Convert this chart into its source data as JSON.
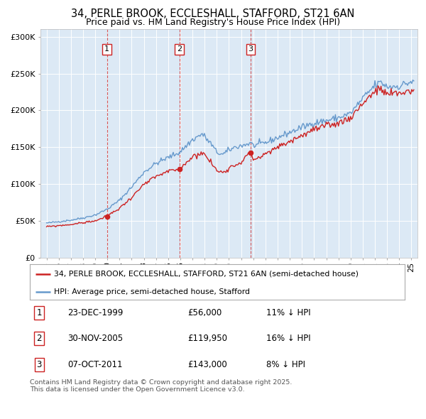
{
  "title": "34, PERLE BROOK, ECCLESHALL, STAFFORD, ST21 6AN",
  "subtitle": "Price paid vs. HM Land Registry's House Price Index (HPI)",
  "hpi_label": "HPI: Average price, semi-detached house, Stafford",
  "price_label": "34, PERLE BROOK, ECCLESHALL, STAFFORD, ST21 6AN (semi-detached house)",
  "sales": [
    {
      "num": 1,
      "date": "23-DEC-1999",
      "price": 56000,
      "year": 1999.97,
      "pct": "11%",
      "dir": "↓"
    },
    {
      "num": 2,
      "date": "30-NOV-2005",
      "price": 119950,
      "year": 2005.92,
      "pct": "16%",
      "dir": "↓"
    },
    {
      "num": 3,
      "date": "07-OCT-2011",
      "price": 143000,
      "year": 2011.77,
      "pct": "8%",
      "dir": "↓"
    }
  ],
  "footnote1": "Contains HM Land Registry data © Crown copyright and database right 2025.",
  "footnote2": "This data is licensed under the Open Government Licence v3.0.",
  "hpi_color": "#6699cc",
  "price_color": "#cc2222",
  "marker_color": "#cc2222",
  "plot_bg": "#dce9f5",
  "ylim": [
    0,
    310000
  ],
  "xlim_start": 1994.5,
  "xlim_end": 2025.5,
  "hpi_anchors": {
    "1995.0": 47000,
    "1996.0": 49000,
    "1997.0": 51000,
    "1998.0": 54000,
    "1999.0": 58000,
    "2000.0": 66000,
    "2001.0": 78000,
    "2002.0": 96000,
    "2003.0": 116000,
    "2004.0": 128000,
    "2005.0": 136000,
    "2005.92": 142857,
    "2006.0": 144000,
    "2007.0": 160000,
    "2007.8": 168000,
    "2008.5": 155000,
    "2009.0": 143000,
    "2009.5": 140000,
    "2010.0": 146000,
    "2010.5": 150000,
    "2011.0": 152000,
    "2011.77": 155435,
    "2012.0": 152000,
    "2013.0": 156000,
    "2014.0": 163000,
    "2015.0": 170000,
    "2016.0": 177000,
    "2017.0": 183000,
    "2018.0": 186000,
    "2019.0": 190000,
    "2020.0": 196000,
    "2021.0": 216000,
    "2022.0": 234000,
    "2022.5": 238000,
    "2023.0": 232000,
    "2024.0": 233000,
    "2025.2": 240000
  },
  "price_anchors": {
    "1995.0": 42000,
    "1996.0": 43500,
    "1997.0": 45000,
    "1998.0": 47500,
    "1999.0": 50000,
    "1999.97": 56000,
    "2000.0": 57000,
    "2001.0": 67000,
    "2002.0": 82000,
    "2003.0": 99000,
    "2004.0": 110000,
    "2005.0": 117000,
    "2005.92": 119950,
    "2006.0": 122000,
    "2007.0": 137000,
    "2007.8": 143000,
    "2008.5": 130000,
    "2009.0": 118000,
    "2009.5": 116000,
    "2010.0": 122000,
    "2010.5": 126000,
    "2011.0": 130000,
    "2011.77": 143000,
    "2012.0": 133000,
    "2013.0": 140000,
    "2014.0": 150000,
    "2015.0": 158000,
    "2016.0": 166000,
    "2017.0": 174000,
    "2018.0": 178000,
    "2019.0": 183000,
    "2020.0": 190000,
    "2021.0": 210000,
    "2022.0": 226000,
    "2022.5": 228000,
    "2023.0": 222000,
    "2024.0": 223000,
    "2025.2": 228000
  }
}
